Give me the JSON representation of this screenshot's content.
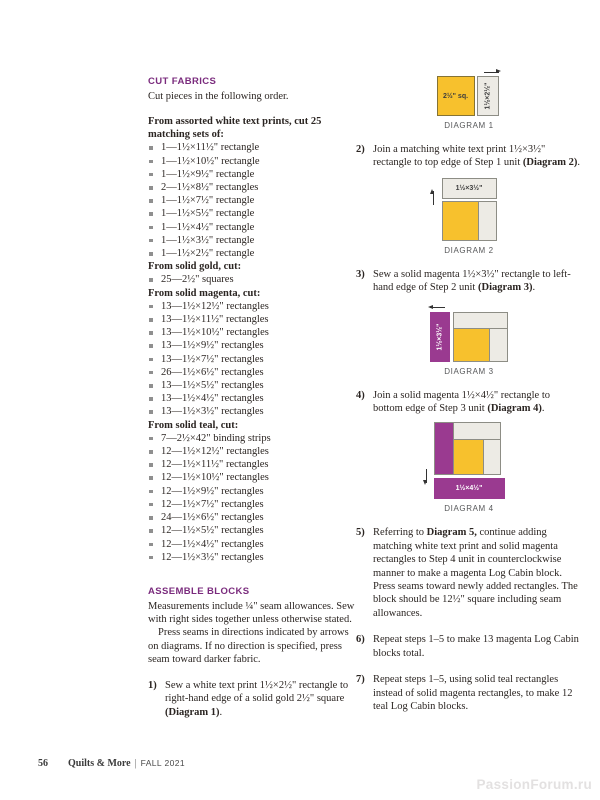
{
  "colors": {
    "accent_purple": "#7a2b7d",
    "gold": "#f7c12d",
    "magenta": "#9a3a90",
    "fabric_white": "#edebe5"
  },
  "cut_fabrics": {
    "heading": "CUT FABRICS",
    "intro": "Cut pieces in the following order.",
    "groups": [
      {
        "title": "From assorted white text prints, cut 25 matching sets of:",
        "items": [
          "1—1½×11½\" rectangle",
          "1—1½×10½\" rectangle",
          "1—1½×9½\" rectangle",
          "2—1½×8½\" rectangles",
          "1—1½×7½\" rectangle",
          "1—1½×5½\" rectangle",
          "1—1½×4½\" rectangle",
          "1—1½×3½\" rectangle",
          "1—1½×2½\" rectangle"
        ]
      },
      {
        "title": "From solid gold, cut:",
        "items": [
          "25—2½\" squares"
        ]
      },
      {
        "title": "From solid magenta, cut:",
        "items": [
          "13—1½×12½\" rectangles",
          "13—1½×11½\" rectangles",
          "13—1½×10½\" rectangles",
          "13—1½×9½\" rectangles",
          "13—1½×7½\" rectangles",
          "26—1½×6½\" rectangles",
          "13—1½×5½\" rectangles",
          "13—1½×4½\" rectangles",
          "13—1½×3½\" rectangles"
        ]
      },
      {
        "title": "From solid teal, cut:",
        "items": [
          "7—2½×42\" binding strips",
          "12—1½×12½\" rectangles",
          "12—1½×11½\" rectangles",
          "12—1½×10½\" rectangles",
          "12—1½×9½\" rectangles",
          "12—1½×7½\" rectangles",
          "24—1½×6½\" rectangles",
          "12—1½×5½\" rectangles",
          "12—1½×4½\" rectangles",
          "12—1½×3½\" rectangles"
        ]
      }
    ]
  },
  "assemble_blocks": {
    "heading": "ASSEMBLE BLOCKS",
    "para1": "Measurements include ¼\" seam allowances. Sew with right sides together unless otherwise stated.",
    "para2": "Press seams in directions indicated by arrows on diagrams. If no direction is specified, press seam toward darker fabric.",
    "steps": [
      {
        "num": "1)",
        "pre": "Sew a white text print 1½×2½\" rectangle to right-hand edge of a solid gold 2½\" square ",
        "bold": "(Diagram 1)",
        "post": "."
      },
      {
        "num": "2)",
        "pre": "Join a matching white text print 1½×3½\" rectangle to top edge of Step 1 unit ",
        "bold": "(Diagram 2)",
        "post": "."
      },
      {
        "num": "3)",
        "pre": "Sew a solid magenta 1½×3½\" rectangle to left-hand edge of Step 2 unit ",
        "bold": "(Diagram 3)",
        "post": "."
      },
      {
        "num": "4)",
        "pre": "Join a solid magenta 1½×4½\" rectangle to bottom edge of Step 3 unit ",
        "bold": "(Diagram 4)",
        "post": "."
      },
      {
        "num": "5)",
        "pre": "Referring to ",
        "bold": "Diagram 5,",
        "post": " continue adding matching white text print and solid magenta rectangles to Step 4 unit in counterclockwise manner to make a magenta Log Cabin block. Press seams toward newly added rectangles. The block should be 12½\" square including seam allowances."
      },
      {
        "num": "6)",
        "pre": "Repeat steps 1–5 to make 13 magenta Log Cabin blocks total.",
        "bold": "",
        "post": ""
      },
      {
        "num": "7)",
        "pre": "Repeat steps 1–5, using solid teal rectangles instead of solid magenta rectangles, to make 12 teal Log Cabin blocks.",
        "bold": "",
        "post": ""
      }
    ]
  },
  "diagrams": {
    "d1": {
      "caption": "DIAGRAM 1",
      "square_label": "2½\" sq.",
      "rect_label": "1½×2½\""
    },
    "d2": {
      "caption": "DIAGRAM 2",
      "rect_label": "1½×3½\""
    },
    "d3": {
      "caption": "DIAGRAM 3",
      "bar_label": "1½×3½\""
    },
    "d4": {
      "caption": "DIAGRAM 4",
      "bar_label": "1½×4½\""
    }
  },
  "footer": {
    "page_number": "56",
    "magazine": "Quilts & More",
    "separator": "|",
    "issue": "FALL 2021",
    "watermark": "PassionForum.ru"
  }
}
